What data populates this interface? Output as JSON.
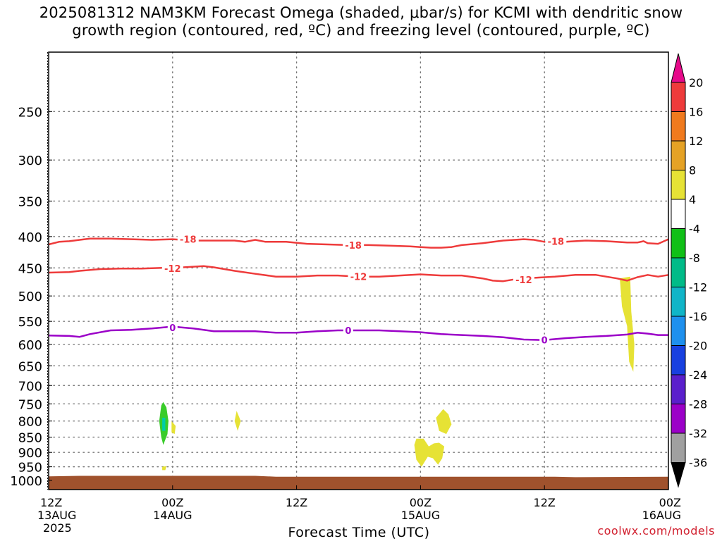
{
  "title_line1": "2025081312 NAM3KM Forecast Omega (shaded, μbar/s) for KCMI with dendritic snow",
  "title_line2": "growth region (contoured, red, ºC) and freezing level (contoured, purple, ºC)",
  "credit": "coolwx.com/models",
  "chart_data": {
    "type": "heatmap",
    "title": "2025081312 NAM3KM Forecast Omega (shaded, μbar/s) for KCMI with dendritic snow growth region (contoured, red, ºC) and freezing level (contoured, purple, ºC)",
    "xlabel": "Forecast Time (UTC)",
    "ylabel": "",
    "x_unit": "forecast hour from 2025-08-13 12Z",
    "xlim": [
      0,
      60
    ],
    "ylim": [
      1035,
      200
    ],
    "y_scale": "log (pressure, hPa)",
    "x_ticks": [
      {
        "x": 0,
        "label": "12Z",
        "sub": "13AUG",
        "sub2": "2025"
      },
      {
        "x": 12,
        "label": "00Z",
        "sub": "14AUG",
        "sub2": ""
      },
      {
        "x": 24,
        "label": "12Z",
        "sub": "",
        "sub2": ""
      },
      {
        "x": 36,
        "label": "00Z",
        "sub": "15AUG",
        "sub2": ""
      },
      {
        "x": 48,
        "label": "12Z",
        "sub": "",
        "sub2": ""
      },
      {
        "x": 60,
        "label": "00Z",
        "sub": "16AUG",
        "sub2": ""
      }
    ],
    "y_ticks": [
      250,
      300,
      350,
      400,
      450,
      500,
      550,
      600,
      650,
      700,
      750,
      800,
      850,
      900,
      950,
      1000
    ],
    "grid": true,
    "ground_top_hPa": [
      [
        0,
        985
      ],
      [
        3,
        983
      ],
      [
        20,
        983
      ],
      [
        22,
        986
      ],
      [
        49,
        986
      ],
      [
        51,
        988
      ],
      [
        60,
        986
      ]
    ],
    "contours": [
      {
        "name": "-18",
        "color": "#ee3b3b",
        "points": [
          [
            0,
            412
          ],
          [
            1,
            408
          ],
          [
            2,
            407
          ],
          [
            3,
            405
          ],
          [
            4,
            403
          ],
          [
            6,
            403
          ],
          [
            8,
            404
          ],
          [
            10,
            405
          ],
          [
            12,
            404
          ],
          [
            14,
            406
          ],
          [
            16,
            406
          ],
          [
            18,
            406
          ],
          [
            19,
            408
          ],
          [
            20,
            405
          ],
          [
            21,
            408
          ],
          [
            23,
            408
          ],
          [
            25,
            411
          ],
          [
            27,
            412
          ],
          [
            29,
            413
          ],
          [
            31,
            413
          ],
          [
            33,
            414
          ],
          [
            35,
            415
          ],
          [
            36,
            416
          ],
          [
            37,
            417
          ],
          [
            38,
            417
          ],
          [
            39,
            416
          ],
          [
            40,
            413
          ],
          [
            42,
            410
          ],
          [
            44,
            406
          ],
          [
            46,
            404
          ],
          [
            47,
            405
          ],
          [
            48,
            408
          ],
          [
            50,
            408
          ],
          [
            52,
            406
          ],
          [
            54,
            407
          ],
          [
            56,
            409
          ],
          [
            57,
            409
          ],
          [
            57.6,
            407
          ],
          [
            58,
            410
          ],
          [
            59,
            411
          ],
          [
            60,
            404
          ]
        ],
        "labels": [
          [
            13.5,
            404
          ],
          [
            29.5,
            413
          ],
          [
            49.1,
            407
          ]
        ]
      },
      {
        "name": "-12",
        "color": "#ee3b3b",
        "points": [
          [
            0,
            458
          ],
          [
            2,
            457
          ],
          [
            3,
            455
          ],
          [
            5,
            452
          ],
          [
            7,
            451
          ],
          [
            9,
            451
          ],
          [
            11,
            450
          ],
          [
            13,
            449
          ],
          [
            15,
            447
          ],
          [
            16,
            449
          ],
          [
            18,
            455
          ],
          [
            20,
            460
          ],
          [
            22,
            465
          ],
          [
            24,
            465
          ],
          [
            26,
            463
          ],
          [
            28,
            463
          ],
          [
            30,
            465
          ],
          [
            32,
            465
          ],
          [
            34,
            463
          ],
          [
            36,
            461
          ],
          [
            38,
            463
          ],
          [
            40,
            463
          ],
          [
            42,
            468
          ],
          [
            43,
            472
          ],
          [
            44,
            473
          ],
          [
            45,
            470
          ],
          [
            46,
            469
          ],
          [
            47,
            467
          ],
          [
            49,
            465
          ],
          [
            51,
            462
          ],
          [
            53,
            462
          ],
          [
            55,
            468
          ],
          [
            56,
            472
          ],
          [
            57,
            466
          ],
          [
            58,
            462
          ],
          [
            59,
            465
          ],
          [
            60,
            462
          ]
        ],
        "labels": [
          [
            12,
            451
          ],
          [
            30,
            465
          ],
          [
            46,
            470
          ]
        ]
      },
      {
        "name": "0",
        "color": "#9b00c8",
        "points": [
          [
            0,
            580
          ],
          [
            2,
            581
          ],
          [
            3,
            583
          ],
          [
            4,
            577
          ],
          [
            6,
            569
          ],
          [
            8,
            568
          ],
          [
            10,
            565
          ],
          [
            12,
            561
          ],
          [
            14,
            565
          ],
          [
            16,
            571
          ],
          [
            18,
            571
          ],
          [
            20,
            571
          ],
          [
            22,
            574
          ],
          [
            24,
            574
          ],
          [
            26,
            571
          ],
          [
            28,
            569
          ],
          [
            30,
            569
          ],
          [
            32,
            569
          ],
          [
            34,
            571
          ],
          [
            36,
            573
          ],
          [
            38,
            577
          ],
          [
            40,
            579
          ],
          [
            42,
            581
          ],
          [
            44,
            584
          ],
          [
            46,
            589
          ],
          [
            48,
            590
          ],
          [
            50,
            586
          ],
          [
            52,
            583
          ],
          [
            54,
            581
          ],
          [
            56,
            578
          ],
          [
            57,
            574
          ],
          [
            58,
            576
          ],
          [
            59,
            579
          ],
          [
            60,
            579
          ]
        ],
        "labels": [
          [
            12,
            563
          ],
          [
            29,
            569
          ],
          [
            48,
            590
          ]
        ]
      }
    ],
    "omega_regions": [
      {
        "color": "#39cc2a",
        "points": [
          [
            10.9,
            755
          ],
          [
            11.1,
            745
          ],
          [
            11.4,
            760
          ],
          [
            11.6,
            800
          ],
          [
            11.5,
            840
          ],
          [
            11.1,
            875
          ],
          [
            10.9,
            850
          ],
          [
            10.7,
            800
          ]
        ]
      },
      {
        "color": "#00ccaa",
        "points": [
          [
            11.0,
            790
          ],
          [
            11.3,
            790
          ],
          [
            11.3,
            830
          ],
          [
            11.0,
            830
          ]
        ]
      },
      {
        "color": "#e6e235",
        "points": [
          [
            11.9,
            800
          ],
          [
            12.3,
            815
          ],
          [
            12.2,
            840
          ],
          [
            11.9,
            835
          ]
        ]
      },
      {
        "color": "#e6e235",
        "points": [
          [
            11.0,
            950
          ],
          [
            11.4,
            948
          ],
          [
            11.3,
            962
          ],
          [
            11.0,
            962
          ]
        ]
      },
      {
        "color": "#e6e235",
        "points": [
          [
            18.2,
            770
          ],
          [
            18.6,
            800
          ],
          [
            18.3,
            830
          ],
          [
            18.0,
            800
          ]
        ]
      },
      {
        "color": "#e6e235",
        "points": [
          [
            35.4,
            875
          ],
          [
            35.6,
            855
          ],
          [
            36.3,
            855
          ],
          [
            36.8,
            880
          ],
          [
            37.3,
            870
          ],
          [
            37.8,
            868
          ],
          [
            38.3,
            880
          ],
          [
            38.1,
            920
          ],
          [
            37.7,
            943
          ],
          [
            37.2,
            920
          ],
          [
            36.7,
            915
          ],
          [
            36.1,
            950
          ],
          [
            35.6,
            925
          ]
        ]
      },
      {
        "color": "#e6e235",
        "points": [
          [
            37.5,
            790
          ],
          [
            38.2,
            765
          ],
          [
            38.7,
            780
          ],
          [
            39.0,
            810
          ],
          [
            38.5,
            840
          ],
          [
            37.8,
            830
          ]
        ]
      },
      {
        "color": "#e6e235",
        "points": [
          [
            55.3,
            468
          ],
          [
            56.3,
            465
          ],
          [
            56.4,
            530
          ],
          [
            56.7,
            600
          ],
          [
            56.6,
            665
          ],
          [
            56.2,
            640
          ],
          [
            56.0,
            560
          ],
          [
            55.5,
            520
          ]
        ]
      }
    ],
    "colorbar": {
      "labels": [
        "20",
        "16",
        "12",
        "8",
        "4",
        "-4",
        "-8",
        "-12",
        "-16",
        "-20",
        "-24",
        "-28",
        "-32",
        "-36"
      ],
      "colors": [
        "#e60a8a",
        "#ee3b3b",
        "#f07a1e",
        "#e5a225",
        "#e6e235",
        "#ffffff",
        "#10c017",
        "#00bb88",
        "#10b5c8",
        "#1e90ee",
        "#1840e0",
        "#5a1fcc",
        "#9b00c8",
        "#a0a0a0",
        "#000000"
      ]
    }
  }
}
